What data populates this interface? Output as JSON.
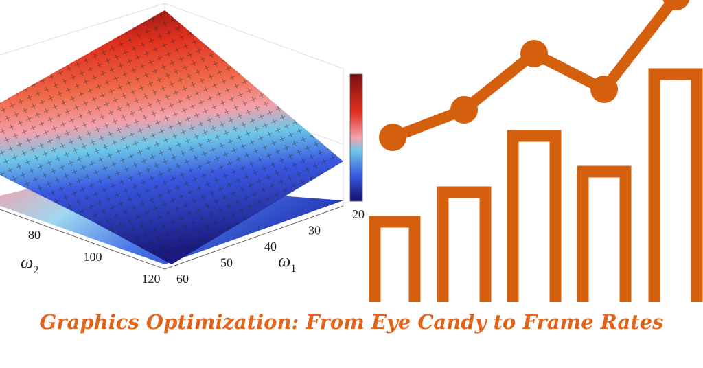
{
  "surface_plot": {
    "w2_axis": {
      "symbol": "ω",
      "subscript": "2",
      "ticks": [
        80,
        100,
        120
      ]
    },
    "w1_axis": {
      "symbol": "ω",
      "subscript": "1",
      "ticks": [
        20,
        30,
        40,
        50,
        60
      ]
    }
  },
  "title": "Graphics Optimization: From Eye Candy to Frame Rates"
}
